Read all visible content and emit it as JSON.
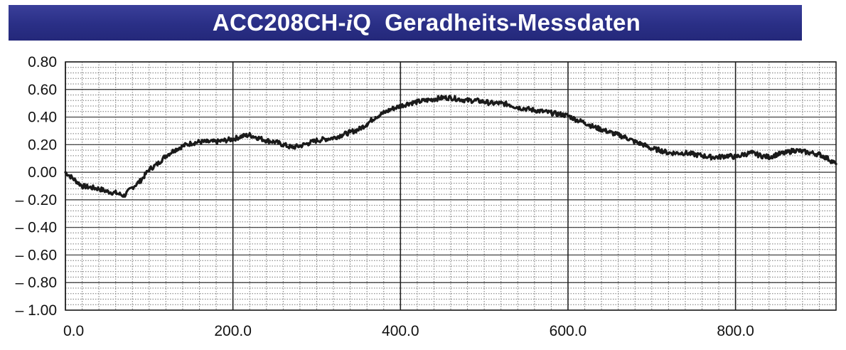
{
  "chart_data": {
    "type": "line",
    "title_prefix": "ACC208CH-",
    "title_italic": "i",
    "title_suffix": "Q  Geradheits-Messdaten",
    "xlabel": "",
    "ylabel": "",
    "xlim": [
      0,
      920
    ],
    "ylim": [
      -1.0,
      0.8
    ],
    "x_ticks": [
      "0.0",
      "200.0",
      "400.0",
      "600.0",
      "800.0"
    ],
    "y_ticks": [
      "0.80",
      "0.60",
      "0.40",
      "0.20",
      "0.00",
      "– 0.20",
      "– 0.40",
      "– 0.60",
      "– 0.80",
      "– 1.00"
    ],
    "grid": true,
    "line_color": "#1a1a1a",
    "series": [
      {
        "x": [
          0,
          10,
          20,
          30,
          40,
          50,
          60,
          70,
          80,
          90,
          100,
          110,
          120,
          130,
          140,
          150,
          160,
          170,
          180,
          190,
          200,
          210,
          220,
          230,
          240,
          250,
          260,
          270,
          280,
          290,
          300,
          310,
          320,
          330,
          340,
          350,
          360,
          370,
          380,
          390,
          400,
          410,
          420,
          430,
          440,
          450,
          460,
          470,
          480,
          490,
          500,
          510,
          520,
          530,
          540,
          550,
          560,
          570,
          580,
          590,
          600,
          610,
          620,
          630,
          640,
          650,
          660,
          670,
          680,
          690,
          700,
          710,
          720,
          730,
          740,
          750,
          760,
          770,
          780,
          790,
          800,
          810,
          820,
          830,
          840,
          850,
          860,
          870,
          880,
          890,
          900,
          910,
          920
        ],
        "values": [
          0.0,
          -0.05,
          -0.1,
          -0.11,
          -0.12,
          -0.14,
          -0.15,
          -0.17,
          -0.11,
          -0.06,
          0.02,
          0.06,
          0.12,
          0.16,
          0.19,
          0.21,
          0.22,
          0.22,
          0.22,
          0.23,
          0.24,
          0.26,
          0.27,
          0.25,
          0.23,
          0.22,
          0.2,
          0.18,
          0.19,
          0.21,
          0.23,
          0.24,
          0.25,
          0.27,
          0.29,
          0.31,
          0.35,
          0.4,
          0.43,
          0.46,
          0.48,
          0.5,
          0.51,
          0.52,
          0.53,
          0.54,
          0.54,
          0.53,
          0.52,
          0.52,
          0.51,
          0.5,
          0.5,
          0.49,
          0.47,
          0.46,
          0.45,
          0.44,
          0.43,
          0.42,
          0.41,
          0.38,
          0.36,
          0.33,
          0.31,
          0.29,
          0.27,
          0.25,
          0.22,
          0.2,
          0.17,
          0.16,
          0.14,
          0.14,
          0.14,
          0.13,
          0.12,
          0.11,
          0.11,
          0.12,
          0.11,
          0.13,
          0.14,
          0.12,
          0.11,
          0.13,
          0.14,
          0.16,
          0.15,
          0.14,
          0.13,
          0.1,
          0.06
        ]
      }
    ]
  }
}
